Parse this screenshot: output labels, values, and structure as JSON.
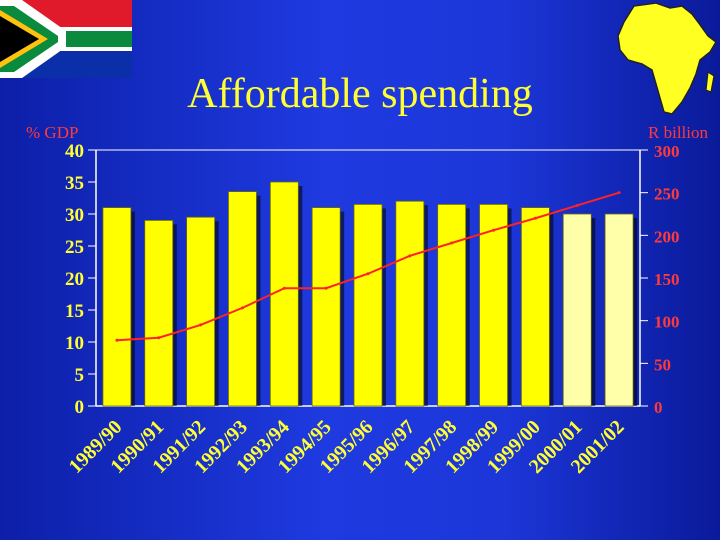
{
  "slide": {
    "title": "Affordable spending",
    "left_unit": "% GDP",
    "right_unit": "R billion"
  },
  "colors": {
    "background": "#1c36d8",
    "title": "#ffff33",
    "bar_actual": "#ffff00",
    "bar_projected": "#ffffaa",
    "line": "#ff2222",
    "left_axis_text": "#ffff33",
    "right_axis_text": "#ff3a3a"
  },
  "chart_data": {
    "type": "bar",
    "categories": [
      "1989/90",
      "1990/91",
      "1991/92",
      "1992/93",
      "1993/94",
      "1994/95",
      "1995/96",
      "1996/97",
      "1997/98",
      "1998/99",
      "1999/00",
      "2000/01",
      "2001/02"
    ],
    "series": [
      {
        "axis": "left",
        "type": "bar",
        "values": [
          31,
          29,
          29.5,
          33.5,
          35,
          31,
          31.5,
          32,
          31.5,
          31.5,
          31,
          30,
          30
        ],
        "projected": [
          false,
          false,
          false,
          false,
          false,
          false,
          false,
          false,
          false,
          false,
          false,
          true,
          true
        ]
      },
      {
        "axis": "right",
        "type": "line",
        "values": [
          77,
          80,
          95,
          115,
          138,
          138,
          155,
          176,
          191,
          206,
          220,
          235,
          250
        ]
      }
    ],
    "y_left": {
      "label": "% GDP",
      "ylim": [
        0,
        40
      ],
      "ticks": [
        0,
        5,
        10,
        15,
        20,
        25,
        30,
        35,
        40
      ]
    },
    "y_right": {
      "label": "R billion",
      "ylim": [
        0,
        300
      ],
      "ticks": [
        0,
        50,
        100,
        150,
        200,
        250,
        300
      ]
    },
    "grid": false,
    "legend": "none"
  }
}
